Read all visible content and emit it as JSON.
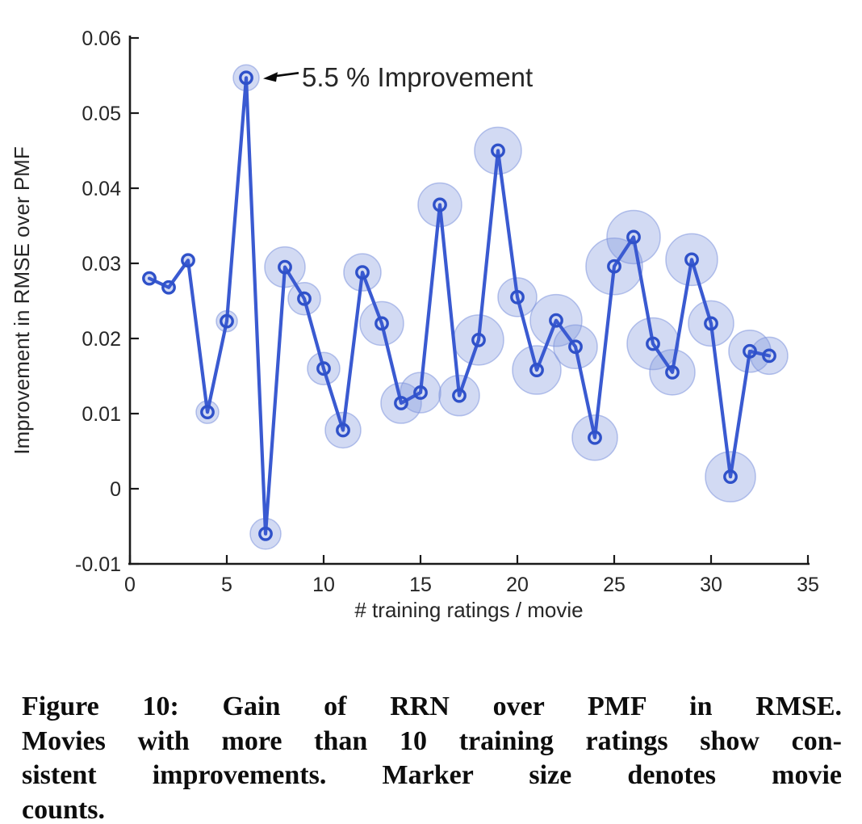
{
  "chart_data": {
    "type": "scatter",
    "subtype": "bubble-line",
    "title": "",
    "xlabel": "# training ratings / movie",
    "ylabel": "Improvement in RMSE over PMF",
    "xlim": [
      0,
      35
    ],
    "ylim": [
      -0.01,
      0.06
    ],
    "grid": false,
    "legend": null,
    "xticks": [
      0,
      5,
      10,
      15,
      20,
      25,
      30,
      35
    ],
    "xtick_labels": [
      "0",
      "5",
      "10",
      "15",
      "20",
      "25",
      "30",
      "35"
    ],
    "yticks": [
      -0.01,
      0,
      0.01,
      0.02,
      0.03,
      0.04,
      0.05,
      0.06
    ],
    "ytick_labels": [
      "-0.01",
      "0",
      "0.01",
      "0.02",
      "0.03",
      "0.04",
      "0.05",
      "0.06"
    ],
    "x": [
      1,
      2,
      3,
      4,
      5,
      6,
      7,
      8,
      9,
      10,
      11,
      12,
      13,
      14,
      15,
      16,
      17,
      18,
      19,
      20,
      21,
      22,
      23,
      24,
      25,
      26,
      27,
      28,
      29,
      30,
      31,
      32,
      33
    ],
    "y": [
      0.028,
      0.0268,
      0.0304,
      0.0102,
      0.0223,
      0.0547,
      -0.006,
      0.0295,
      0.0253,
      0.016,
      0.0078,
      0.0288,
      0.022,
      0.0114,
      0.0128,
      0.0378,
      0.0124,
      0.0198,
      0.045,
      0.0255,
      0.0158,
      0.0224,
      0.0189,
      0.0068,
      0.0296,
      0.0335,
      0.0193,
      0.0155,
      0.0305,
      0.022,
      0.0016,
      0.0183,
      0.0177
    ],
    "bubble_radius_px": [
      8,
      8,
      8,
      14,
      13,
      16,
      19,
      25,
      20,
      20,
      22,
      23,
      27,
      25,
      25,
      27,
      25,
      31,
      29,
      24,
      30,
      32,
      27,
      28,
      35,
      33,
      32,
      28,
      32,
      28,
      31,
      26,
      23
    ],
    "size_meaning": "Marker size denotes movie counts",
    "annotation": {
      "text": "5.5 % Improvement",
      "target_x": 6,
      "target_y": 0.0547
    },
    "colors": {
      "line": "#3a5ad1",
      "marker_edge": "#2f51c9",
      "bubble_fill": "#7d94dc",
      "bubble_fill_opacity": 0.35,
      "bubble_edge_opacity": 0.55,
      "axis": "#1a1a1a",
      "text": "#262626",
      "annotation_arrow": "#0a0a0a"
    }
  },
  "caption": {
    "lines": [
      "Figure 10:  Gain of RRN over PMF in RMSE.",
      "Movies with more than 10 training ratings show con-",
      "sistent improvements.  Marker size denotes movie",
      "counts."
    ]
  }
}
